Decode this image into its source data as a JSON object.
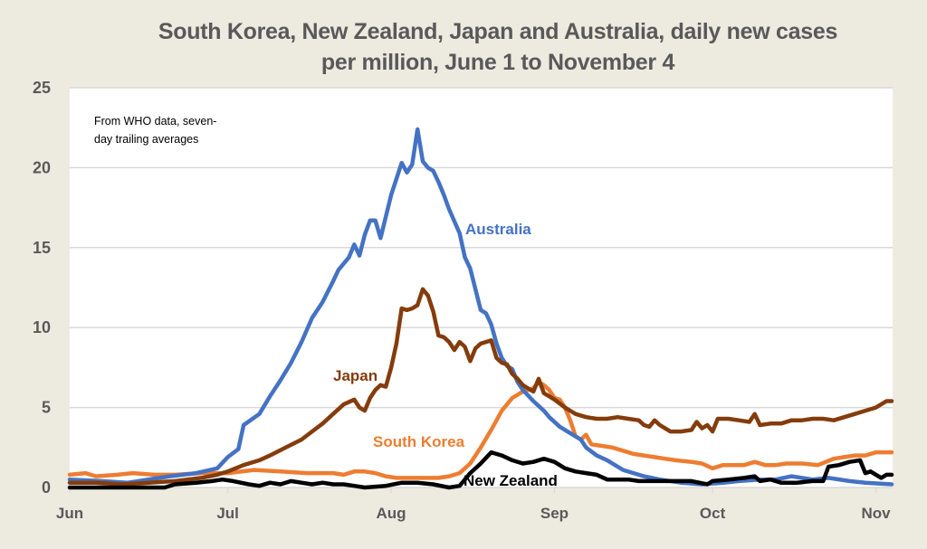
{
  "chart_data": {
    "type": "line",
    "title": "South Korea, New Zealand, Japan and Australia, daily new cases per million, June 1 to November 4",
    "annotation": [
      "From WHO data, seven-",
      "day trailing averages"
    ],
    "xlabel": "",
    "ylabel": "",
    "ylim": [
      0,
      25
    ],
    "yticks": [
      "0",
      "5",
      "10",
      "15",
      "20",
      "25"
    ],
    "ytick_values": [
      0,
      5,
      10,
      15,
      20,
      25
    ],
    "x_unit": "days since June 1",
    "xlim": [
      0,
      156
    ],
    "xticks": [
      {
        "label": "Jun",
        "day": 0
      },
      {
        "label": "Jul",
        "day": 30
      },
      {
        "label": "Aug",
        "day": 61
      },
      {
        "label": "Sep",
        "day": 92
      },
      {
        "label": "Oct",
        "day": 122
      },
      {
        "label": "Nov",
        "day": 153
      }
    ],
    "grid": true,
    "legend": "inline labels",
    "series": [
      {
        "name": "Australia",
        "color": "#4472c4",
        "label": "Australia",
        "points": [
          [
            0,
            0.5
          ],
          [
            6,
            0.4
          ],
          [
            11,
            0.3
          ],
          [
            19,
            0.7
          ],
          [
            24,
            0.9
          ],
          [
            28,
            1.2
          ],
          [
            30,
            1.9
          ],
          [
            32,
            2.4
          ],
          [
            33,
            3.9
          ],
          [
            36,
            4.6
          ],
          [
            38,
            5.7
          ],
          [
            40,
            6.7
          ],
          [
            42,
            7.8
          ],
          [
            44,
            9.1
          ],
          [
            46,
            10.6
          ],
          [
            48,
            11.6
          ],
          [
            50,
            12.9
          ],
          [
            51,
            13.6
          ],
          [
            53,
            14.4
          ],
          [
            54,
            15.2
          ],
          [
            55,
            14.5
          ],
          [
            56,
            15.8
          ],
          [
            57,
            16.7
          ],
          [
            58,
            16.7
          ],
          [
            59,
            15.6
          ],
          [
            61,
            18.3
          ],
          [
            62,
            19.3
          ],
          [
            63,
            20.3
          ],
          [
            64,
            19.7
          ],
          [
            65,
            20.2
          ],
          [
            66,
            22.4
          ],
          [
            67,
            20.4
          ],
          [
            68,
            20.0
          ],
          [
            69,
            19.8
          ],
          [
            70,
            19.1
          ],
          [
            71,
            18.3
          ],
          [
            72,
            17.4
          ],
          [
            74,
            15.9
          ],
          [
            75,
            14.4
          ],
          [
            76,
            13.7
          ],
          [
            77,
            12.4
          ],
          [
            78,
            11.1
          ],
          [
            79,
            10.9
          ],
          [
            80,
            10.2
          ],
          [
            81,
            9.0
          ],
          [
            82,
            8.1
          ],
          [
            83,
            7.6
          ],
          [
            84,
            7.4
          ],
          [
            85,
            6.6
          ],
          [
            86,
            6.1
          ],
          [
            88,
            5.4
          ],
          [
            90,
            4.8
          ],
          [
            91,
            4.4
          ],
          [
            93,
            3.8
          ],
          [
            95,
            3.4
          ],
          [
            97,
            3.0
          ],
          [
            98,
            2.5
          ],
          [
            100,
            2.0
          ],
          [
            102,
            1.7
          ],
          [
            104,
            1.3
          ],
          [
            105,
            1.1
          ],
          [
            107,
            0.9
          ],
          [
            109,
            0.7
          ],
          [
            112,
            0.5
          ],
          [
            116,
            0.3
          ],
          [
            120,
            0.2
          ],
          [
            124,
            0.3
          ],
          [
            127,
            0.4
          ],
          [
            131,
            0.5
          ],
          [
            134,
            0.5
          ],
          [
            137,
            0.7
          ],
          [
            141,
            0.5
          ],
          [
            144,
            0.6
          ],
          [
            148,
            0.4
          ],
          [
            151,
            0.3
          ],
          [
            156,
            0.2
          ]
        ]
      },
      {
        "name": "Japan",
        "color": "#843c0c",
        "label": "Japan",
        "points": [
          [
            0,
            0.3
          ],
          [
            5,
            0.3
          ],
          [
            10,
            0.2
          ],
          [
            15,
            0.3
          ],
          [
            20,
            0.4
          ],
          [
            25,
            0.6
          ],
          [
            28,
            0.8
          ],
          [
            30,
            1.0
          ],
          [
            33,
            1.4
          ],
          [
            36,
            1.7
          ],
          [
            38,
            2.0
          ],
          [
            41,
            2.5
          ],
          [
            44,
            3.0
          ],
          [
            46,
            3.5
          ],
          [
            48,
            4.0
          ],
          [
            50,
            4.6
          ],
          [
            52,
            5.2
          ],
          [
            54,
            5.5
          ],
          [
            55,
            5.0
          ],
          [
            56,
            4.8
          ],
          [
            57,
            5.6
          ],
          [
            58,
            6.1
          ],
          [
            59,
            6.4
          ],
          [
            60,
            6.3
          ],
          [
            61,
            7.5
          ],
          [
            62,
            9.0
          ],
          [
            63,
            11.2
          ],
          [
            64,
            11.1
          ],
          [
            65,
            11.2
          ],
          [
            66,
            11.4
          ],
          [
            67,
            12.4
          ],
          [
            68,
            12.0
          ],
          [
            69,
            11.0
          ],
          [
            70,
            9.5
          ],
          [
            71,
            9.4
          ],
          [
            72,
            9.1
          ],
          [
            73,
            8.6
          ],
          [
            74,
            9.1
          ],
          [
            75,
            8.8
          ],
          [
            76,
            7.9
          ],
          [
            77,
            8.7
          ],
          [
            78,
            9.0
          ],
          [
            79,
            9.1
          ],
          [
            80,
            9.2
          ],
          [
            81,
            8.1
          ],
          [
            82,
            7.8
          ],
          [
            83,
            7.7
          ],
          [
            84,
            7.1
          ],
          [
            85,
            6.8
          ],
          [
            86,
            6.4
          ],
          [
            87,
            6.2
          ],
          [
            88,
            6.0
          ],
          [
            89,
            6.8
          ],
          [
            90,
            5.9
          ],
          [
            91,
            5.7
          ],
          [
            92,
            5.5
          ],
          [
            94,
            5.0
          ],
          [
            96,
            4.6
          ],
          [
            98,
            4.4
          ],
          [
            100,
            4.3
          ],
          [
            102,
            4.3
          ],
          [
            104,
            4.4
          ],
          [
            106,
            4.3
          ],
          [
            108,
            4.2
          ],
          [
            109,
            3.9
          ],
          [
            110,
            3.8
          ],
          [
            111,
            4.2
          ],
          [
            112,
            3.9
          ],
          [
            114,
            3.5
          ],
          [
            116,
            3.5
          ],
          [
            118,
            3.6
          ],
          [
            119,
            4.1
          ],
          [
            120,
            3.7
          ],
          [
            121,
            3.9
          ],
          [
            122,
            3.5
          ],
          [
            123,
            4.3
          ],
          [
            125,
            4.3
          ],
          [
            127,
            4.2
          ],
          [
            129,
            4.1
          ],
          [
            130,
            4.6
          ],
          [
            131,
            3.9
          ],
          [
            133,
            4.0
          ],
          [
            135,
            4.0
          ],
          [
            137,
            4.2
          ],
          [
            139,
            4.2
          ],
          [
            141,
            4.3
          ],
          [
            143,
            4.3
          ],
          [
            145,
            4.2
          ],
          [
            147,
            4.4
          ],
          [
            149,
            4.6
          ],
          [
            151,
            4.8
          ],
          [
            153,
            5.0
          ],
          [
            155,
            5.4
          ],
          [
            156,
            5.4
          ]
        ]
      },
      {
        "name": "South Korea",
        "color": "#ed7d31",
        "label": "South Korea",
        "points": [
          [
            0,
            0.8
          ],
          [
            3,
            0.9
          ],
          [
            5,
            0.7
          ],
          [
            9,
            0.8
          ],
          [
            12,
            0.9
          ],
          [
            16,
            0.8
          ],
          [
            20,
            0.8
          ],
          [
            25,
            0.9
          ],
          [
            28,
            0.9
          ],
          [
            30,
            0.9
          ],
          [
            35,
            1.1
          ],
          [
            40,
            1.0
          ],
          [
            45,
            0.9
          ],
          [
            50,
            0.9
          ],
          [
            52,
            0.8
          ],
          [
            54,
            1.0
          ],
          [
            56,
            1.0
          ],
          [
            58,
            0.9
          ],
          [
            60,
            0.7
          ],
          [
            62,
            0.6
          ],
          [
            65,
            0.6
          ],
          [
            70,
            0.6
          ],
          [
            72,
            0.7
          ],
          [
            74,
            0.9
          ],
          [
            76,
            1.5
          ],
          [
            78,
            2.5
          ],
          [
            80,
            3.6
          ],
          [
            82,
            4.8
          ],
          [
            84,
            5.6
          ],
          [
            86,
            6.0
          ],
          [
            88,
            6.2
          ],
          [
            89,
            6.6
          ],
          [
            90,
            6.4
          ],
          [
            91,
            6.1
          ],
          [
            92,
            5.6
          ],
          [
            93,
            5.5
          ],
          [
            94,
            5.0
          ],
          [
            95,
            4.2
          ],
          [
            96,
            3.2
          ],
          [
            97,
            3.0
          ],
          [
            98,
            3.3
          ],
          [
            99,
            2.7
          ],
          [
            101,
            2.6
          ],
          [
            103,
            2.5
          ],
          [
            105,
            2.3
          ],
          [
            107,
            2.1
          ],
          [
            109,
            2.0
          ],
          [
            111,
            1.9
          ],
          [
            113,
            1.8
          ],
          [
            115,
            1.7
          ],
          [
            118,
            1.6
          ],
          [
            120,
            1.5
          ],
          [
            122,
            1.2
          ],
          [
            124,
            1.4
          ],
          [
            126,
            1.4
          ],
          [
            128,
            1.4
          ],
          [
            130,
            1.6
          ],
          [
            132,
            1.4
          ],
          [
            134,
            1.4
          ],
          [
            136,
            1.5
          ],
          [
            139,
            1.5
          ],
          [
            142,
            1.4
          ],
          [
            145,
            1.8
          ],
          [
            147,
            1.9
          ],
          [
            149,
            2.0
          ],
          [
            151,
            2.0
          ],
          [
            153,
            2.2
          ],
          [
            156,
            2.2
          ]
        ]
      },
      {
        "name": "New Zealand",
        "color": "#000000",
        "label": "New Zealand",
        "points": [
          [
            0,
            0.0
          ],
          [
            10,
            0.0
          ],
          [
            18,
            0.0
          ],
          [
            20,
            0.2
          ],
          [
            24,
            0.3
          ],
          [
            27,
            0.4
          ],
          [
            29,
            0.5
          ],
          [
            31,
            0.4
          ],
          [
            34,
            0.2
          ],
          [
            36,
            0.1
          ],
          [
            38,
            0.3
          ],
          [
            40,
            0.2
          ],
          [
            42,
            0.4
          ],
          [
            44,
            0.3
          ],
          [
            46,
            0.2
          ],
          [
            48,
            0.3
          ],
          [
            50,
            0.2
          ],
          [
            52,
            0.2
          ],
          [
            54,
            0.1
          ],
          [
            56,
            0.0
          ],
          [
            60,
            0.1
          ],
          [
            63,
            0.3
          ],
          [
            66,
            0.3
          ],
          [
            69,
            0.2
          ],
          [
            72,
            0.0
          ],
          [
            74,
            0.1
          ],
          [
            76,
            0.9
          ],
          [
            78,
            1.5
          ],
          [
            80,
            2.2
          ],
          [
            82,
            2.0
          ],
          [
            84,
            1.7
          ],
          [
            86,
            1.5
          ],
          [
            88,
            1.6
          ],
          [
            90,
            1.8
          ],
          [
            92,
            1.6
          ],
          [
            94,
            1.2
          ],
          [
            96,
            1.0
          ],
          [
            98,
            0.9
          ],
          [
            100,
            0.8
          ],
          [
            102,
            0.5
          ],
          [
            104,
            0.5
          ],
          [
            106,
            0.5
          ],
          [
            108,
            0.4
          ],
          [
            110,
            0.4
          ],
          [
            114,
            0.4
          ],
          [
            118,
            0.4
          ],
          [
            121,
            0.2
          ],
          [
            122,
            0.4
          ],
          [
            125,
            0.5
          ],
          [
            128,
            0.6
          ],
          [
            130,
            0.7
          ],
          [
            131,
            0.4
          ],
          [
            133,
            0.5
          ],
          [
            135,
            0.3
          ],
          [
            138,
            0.3
          ],
          [
            141,
            0.4
          ],
          [
            143,
            0.4
          ],
          [
            144,
            1.3
          ],
          [
            146,
            1.4
          ],
          [
            148,
            1.6
          ],
          [
            150,
            1.7
          ],
          [
            151,
            0.9
          ],
          [
            152,
            1.0
          ],
          [
            154,
            0.6
          ],
          [
            155,
            0.8
          ],
          [
            156,
            0.8
          ]
        ]
      }
    ]
  }
}
